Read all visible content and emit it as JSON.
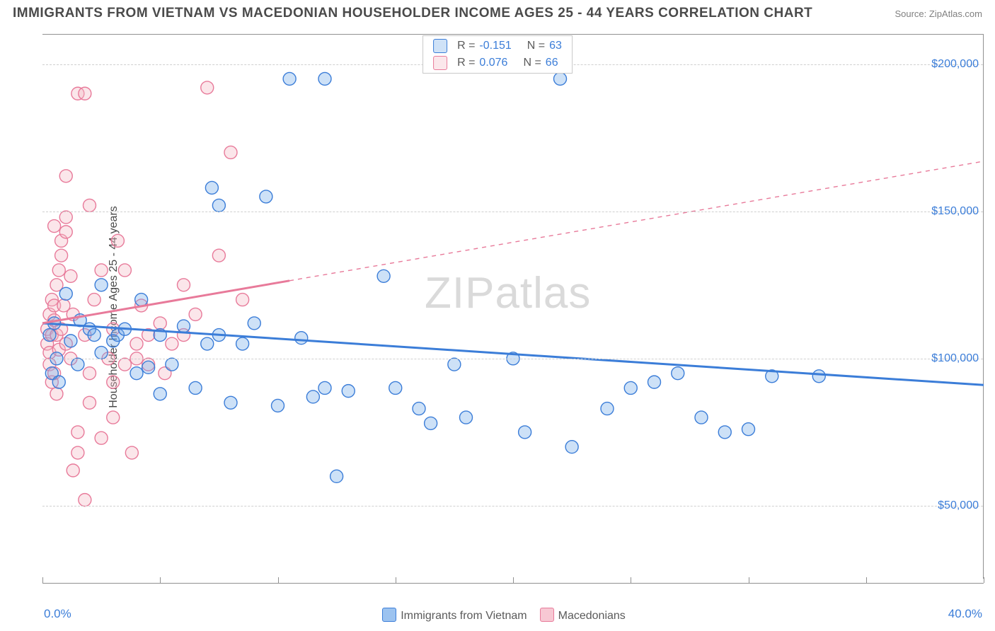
{
  "title": "IMMIGRANTS FROM VIETNAM VS MACEDONIAN HOUSEHOLDER INCOME AGES 25 - 44 YEARS CORRELATION CHART",
  "source_label": "Source: ",
  "source_value": "ZipAtlas.com",
  "watermark": "ZIPatlas",
  "chart": {
    "type": "scatter",
    "ylabel": "Householder Income Ages 25 - 44 years",
    "xlim": [
      0,
      40
    ],
    "ylim": [
      25000,
      210000
    ],
    "x_tick_positions": [
      0,
      5,
      10,
      15,
      20,
      25,
      30,
      35,
      40
    ],
    "x_min_label": "0.0%",
    "x_max_label": "40.0%",
    "y_ticks": [
      {
        "v": 50000,
        "label": "$50,000"
      },
      {
        "v": 100000,
        "label": "$100,000"
      },
      {
        "v": 150000,
        "label": "$150,000"
      },
      {
        "v": 200000,
        "label": "$200,000"
      }
    ],
    "grid_color": "#d0d0d0",
    "axis_color": "#909090",
    "background": "#ffffff",
    "marker_radius": 9,
    "marker_stroke_width": 1.4,
    "marker_fill_opacity": 0.35,
    "trend_line_width": 3,
    "series": [
      {
        "name": "Immigrants from Vietnam",
        "color": "#6fa8e8",
        "stroke": "#3b7dd8",
        "stats": {
          "R": "-0.151",
          "N": "63"
        },
        "trend": {
          "x1": 0,
          "y1": 112000,
          "x2": 40,
          "y2": 91000,
          "solid_until_x": 40
        },
        "points": [
          [
            0.3,
            108000
          ],
          [
            0.4,
            95000
          ],
          [
            0.5,
            112000
          ],
          [
            0.6,
            100000
          ],
          [
            0.7,
            92000
          ],
          [
            1.0,
            122000
          ],
          [
            1.2,
            106000
          ],
          [
            1.5,
            98000
          ],
          [
            1.6,
            113000
          ],
          [
            2.0,
            110000
          ],
          [
            2.2,
            108000
          ],
          [
            2.5,
            102000
          ],
          [
            2.5,
            125000
          ],
          [
            3.0,
            106000
          ],
          [
            3.2,
            108000
          ],
          [
            3.5,
            110000
          ],
          [
            4.0,
            95000
          ],
          [
            4.2,
            120000
          ],
          [
            4.5,
            97000
          ],
          [
            5.0,
            88000
          ],
          [
            5.0,
            108000
          ],
          [
            5.5,
            98000
          ],
          [
            6.0,
            111000
          ],
          [
            6.5,
            90000
          ],
          [
            7.0,
            105000
          ],
          [
            7.2,
            158000
          ],
          [
            7.5,
            108000
          ],
          [
            7.5,
            152000
          ],
          [
            8.0,
            85000
          ],
          [
            8.5,
            105000
          ],
          [
            9.0,
            112000
          ],
          [
            9.5,
            155000
          ],
          [
            10.0,
            84000
          ],
          [
            10.5,
            195000
          ],
          [
            11.0,
            107000
          ],
          [
            11.5,
            87000
          ],
          [
            12.0,
            195000
          ],
          [
            12.0,
            90000
          ],
          [
            12.5,
            60000
          ],
          [
            13.0,
            89000
          ],
          [
            14.5,
            128000
          ],
          [
            15.0,
            90000
          ],
          [
            16.0,
            83000
          ],
          [
            16.5,
            78000
          ],
          [
            17.5,
            98000
          ],
          [
            18.0,
            80000
          ],
          [
            20.0,
            100000
          ],
          [
            20.5,
            75000
          ],
          [
            22.0,
            195000
          ],
          [
            22.5,
            70000
          ],
          [
            24.0,
            83000
          ],
          [
            25.0,
            90000
          ],
          [
            26.0,
            92000
          ],
          [
            27.0,
            95000
          ],
          [
            28.0,
            80000
          ],
          [
            29.0,
            75000
          ],
          [
            30.0,
            76000
          ],
          [
            31.0,
            94000
          ],
          [
            33.0,
            94000
          ]
        ]
      },
      {
        "name": "Macedonians",
        "color": "#f4b6c2",
        "stroke": "#e87a9a",
        "stats": {
          "R": "0.076",
          "N": "66"
        },
        "trend": {
          "x1": 0,
          "y1": 112000,
          "x2": 40,
          "y2": 167000,
          "solid_until_x": 10.5
        },
        "points": [
          [
            0.2,
            110000
          ],
          [
            0.2,
            105000
          ],
          [
            0.3,
            102000
          ],
          [
            0.3,
            115000
          ],
          [
            0.3,
            98000
          ],
          [
            0.4,
            92000
          ],
          [
            0.4,
            108000
          ],
          [
            0.4,
            120000
          ],
          [
            0.5,
            113000
          ],
          [
            0.5,
            118000
          ],
          [
            0.5,
            95000
          ],
          [
            0.5,
            145000
          ],
          [
            0.6,
            88000
          ],
          [
            0.6,
            125000
          ],
          [
            0.6,
            108000
          ],
          [
            0.7,
            130000
          ],
          [
            0.7,
            103000
          ],
          [
            0.8,
            140000
          ],
          [
            0.8,
            110000
          ],
          [
            0.8,
            135000
          ],
          [
            0.9,
            118000
          ],
          [
            1.0,
            148000
          ],
          [
            1.0,
            143000
          ],
          [
            1.0,
            105000
          ],
          [
            1.0,
            162000
          ],
          [
            1.2,
            100000
          ],
          [
            1.2,
            128000
          ],
          [
            1.3,
            62000
          ],
          [
            1.3,
            115000
          ],
          [
            1.5,
            75000
          ],
          [
            1.5,
            68000
          ],
          [
            1.5,
            190000
          ],
          [
            1.8,
            190000
          ],
          [
            1.8,
            52000
          ],
          [
            1.8,
            108000
          ],
          [
            2.0,
            152000
          ],
          [
            2.0,
            85000
          ],
          [
            2.0,
            95000
          ],
          [
            2.2,
            120000
          ],
          [
            2.5,
            130000
          ],
          [
            2.5,
            73000
          ],
          [
            2.8,
            100000
          ],
          [
            3.0,
            110000
          ],
          [
            3.0,
            92000
          ],
          [
            3.0,
            80000
          ],
          [
            3.2,
            140000
          ],
          [
            3.5,
            130000
          ],
          [
            3.5,
            98000
          ],
          [
            3.8,
            68000
          ],
          [
            4.0,
            100000
          ],
          [
            4.0,
            105000
          ],
          [
            4.2,
            118000
          ],
          [
            4.5,
            98000
          ],
          [
            4.5,
            108000
          ],
          [
            5.0,
            112000
          ],
          [
            5.2,
            95000
          ],
          [
            5.5,
            105000
          ],
          [
            6.0,
            125000
          ],
          [
            6.0,
            108000
          ],
          [
            6.5,
            115000
          ],
          [
            7.0,
            192000
          ],
          [
            7.5,
            135000
          ],
          [
            8.0,
            170000
          ],
          [
            8.5,
            120000
          ]
        ]
      }
    ],
    "bottom_legend": [
      {
        "swatch": "#9cc3f0",
        "stroke": "#3b7dd8",
        "label": "Immigrants from Vietnam"
      },
      {
        "swatch": "#f7c8d3",
        "stroke": "#e87a9a",
        "label": "Macedonians"
      }
    ]
  }
}
